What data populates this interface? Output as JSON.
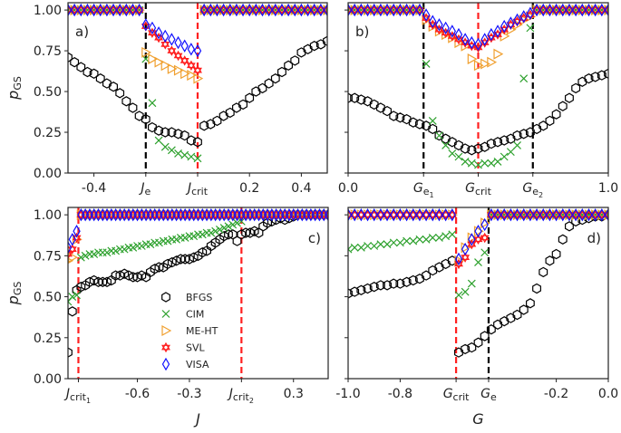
{
  "chart_data": [
    {
      "panel": "a)",
      "type": "scatter",
      "ylabel": "p_GS",
      "xlabel": "",
      "xlim": [
        -0.5,
        0.5
      ],
      "ylim": [
        0,
        1.045
      ],
      "yticks": [
        0,
        0.25,
        0.5,
        0.75,
        1.0
      ],
      "ytick_labels": [
        "0.00",
        "0.25",
        "0.50",
        "0.75",
        "1.00"
      ],
      "xticks": [
        {
          "v": -0.4,
          "main": "-0.4"
        },
        {
          "v": -0.2,
          "main": "J",
          "sub": "e"
        },
        {
          "v": 0.0,
          "main": "J",
          "sub": "crit"
        },
        {
          "v": 0.2,
          "main": "0.2"
        },
        {
          "v": 0.4,
          "main": "0.4"
        }
      ],
      "vlines": [
        {
          "v": -0.2,
          "color": "#000000"
        },
        {
          "v": 0.0,
          "color": "#ff2020"
        }
      ],
      "x_start": -0.5,
      "x_step": 0.025,
      "series": {
        "BFGS": [
          0.71,
          0.68,
          0.65,
          0.62,
          0.61,
          0.58,
          0.55,
          0.53,
          0.49,
          0.44,
          0.4,
          0.35,
          0.33,
          0.28,
          0.26,
          0.25,
          0.25,
          0.24,
          0.23,
          0.2,
          0.19,
          0.29,
          0.3,
          0.32,
          0.35,
          0.37,
          0.4,
          0.42,
          0.46,
          0.5,
          0.52,
          0.55,
          0.58,
          0.62,
          0.66,
          0.69,
          0.74,
          0.76,
          0.78,
          0.79,
          0.81
        ],
        "CIM": [
          1,
          1,
          1,
          1,
          1,
          1,
          1,
          1,
          1,
          1,
          1,
          1,
          0.7,
          0.43,
          0.2,
          0.16,
          0.14,
          0.12,
          0.11,
          0.1,
          0.09,
          1,
          1,
          1,
          1,
          1,
          1,
          1,
          1,
          1,
          1,
          1,
          1,
          1,
          1,
          1,
          1,
          1,
          1,
          1,
          1
        ],
        "ME-HT": [
          1,
          1,
          1,
          1,
          1,
          1,
          1,
          1,
          1,
          1,
          1,
          1,
          0.74,
          0.7,
          0.68,
          0.66,
          0.64,
          0.63,
          0.61,
          0.6,
          0.58,
          1,
          1,
          1,
          1,
          1,
          1,
          1,
          1,
          1,
          1,
          1,
          1,
          1,
          1,
          1,
          1,
          1,
          1,
          1,
          1
        ],
        "SVL": [
          1,
          1,
          1,
          1,
          1,
          1,
          1,
          1,
          1,
          1,
          1,
          1,
          0.9,
          0.86,
          0.83,
          0.79,
          0.75,
          0.72,
          0.69,
          0.66,
          0.63,
          1,
          1,
          1,
          1,
          1,
          1,
          1,
          1,
          1,
          1,
          1,
          1,
          1,
          1,
          1,
          1,
          1,
          1,
          1,
          1
        ],
        "VISA": [
          1,
          1,
          1,
          1,
          1,
          1,
          1,
          1,
          1,
          1,
          1,
          1,
          0.91,
          0.89,
          0.86,
          0.84,
          0.82,
          0.8,
          0.78,
          0.76,
          0.75,
          1,
          1,
          1,
          1,
          1,
          1,
          1,
          1,
          1,
          1,
          1,
          1,
          1,
          1,
          1,
          1,
          1,
          1,
          1,
          1
        ]
      }
    },
    {
      "panel": "b)",
      "type": "scatter",
      "ylabel": "",
      "xlabel": "",
      "xlim": [
        0,
        1
      ],
      "ylim": [
        0,
        1.045
      ],
      "yticks": [
        0,
        0.25,
        0.5,
        0.75,
        1.0
      ],
      "ytick_labels": [],
      "xticks": [
        {
          "v": 0.0,
          "main": "0.0"
        },
        {
          "v": 0.29,
          "main": "G",
          "sub": "e",
          "subsub": "1"
        },
        {
          "v": 0.5,
          "main": "G",
          "sub": "crit"
        },
        {
          "v": 0.71,
          "main": "G",
          "sub": "e",
          "subsub": "2"
        },
        {
          "v": 1.0,
          "main": "1.0"
        }
      ],
      "vlines": [
        {
          "v": 0.29,
          "color": "#000000"
        },
        {
          "v": 0.5,
          "color": "#ff2020"
        },
        {
          "v": 0.71,
          "color": "#000000"
        }
      ],
      "x_start": 0,
      "x_step": 0.025,
      "series": {
        "BFGS": [
          0.46,
          0.46,
          0.45,
          0.44,
          0.42,
          0.4,
          0.38,
          0.35,
          0.34,
          0.33,
          0.31,
          0.3,
          0.29,
          0.27,
          0.23,
          0.21,
          0.19,
          0.17,
          0.15,
          0.14,
          0.15,
          0.16,
          0.18,
          0.19,
          0.2,
          0.21,
          0.23,
          0.24,
          0.25,
          0.27,
          0.29,
          0.32,
          0.36,
          0.41,
          0.46,
          0.52,
          0.56,
          0.58,
          0.59,
          0.6,
          0.61
        ],
        "CIM": [
          1,
          1,
          1,
          1,
          1,
          1,
          1,
          1,
          1,
          1,
          1,
          1,
          0.67,
          0.32,
          0.23,
          0.17,
          0.12,
          0.1,
          0.07,
          0.06,
          0.05,
          0.06,
          0.06,
          0.07,
          0.1,
          0.13,
          0.17,
          0.58,
          0.89,
          1,
          1,
          1,
          1,
          1,
          1,
          1,
          1,
          1,
          1,
          1,
          1
        ],
        "ME-HT": [
          1,
          1,
          1,
          1,
          1,
          1,
          1,
          1,
          1,
          1,
          1,
          1,
          0.94,
          0.9,
          0.87,
          0.85,
          0.83,
          0.8,
          0.78,
          0.7,
          0.66,
          0.67,
          0.68,
          0.73,
          0.84,
          0.88,
          0.91,
          0.94,
          0.96,
          1,
          1,
          1,
          1,
          1,
          1,
          1,
          1,
          1,
          1,
          1,
          1
        ],
        "SVL": [
          1,
          1,
          1,
          1,
          1,
          1,
          1,
          1,
          1,
          1,
          1,
          1,
          0.95,
          0.91,
          0.88,
          0.86,
          0.84,
          0.82,
          0.8,
          0.78,
          0.77,
          0.8,
          0.83,
          0.85,
          0.88,
          0.91,
          0.93,
          0.95,
          0.97,
          1,
          1,
          1,
          1,
          1,
          1,
          1,
          1,
          1,
          1,
          1,
          1
        ],
        "VISA": [
          1,
          1,
          1,
          1,
          1,
          1,
          1,
          1,
          1,
          1,
          1,
          1,
          0.97,
          0.93,
          0.91,
          0.89,
          0.87,
          0.85,
          0.82,
          0.8,
          0.79,
          0.82,
          0.85,
          0.87,
          0.9,
          0.92,
          0.94,
          0.96,
          0.98,
          1,
          1,
          1,
          1,
          1,
          1,
          1,
          1,
          1,
          1,
          1,
          1
        ]
      }
    },
    {
      "panel": "c)",
      "type": "scatter",
      "ylabel": "p_GS",
      "xlabel": "J",
      "xlim": [
        -1.0,
        0.5
      ],
      "ylim": [
        0,
        1.045
      ],
      "yticks": [
        0,
        0.25,
        0.5,
        0.75,
        1.0
      ],
      "ytick_labels": [
        "0.00",
        "0.25",
        "0.50",
        "0.75",
        "1.00"
      ],
      "xticks": [
        {
          "v": -0.94,
          "main": "J",
          "sub": "crit",
          "subsub": "1"
        },
        {
          "v": -0.6,
          "main": "-0.6"
        },
        {
          "v": -0.3,
          "main": "-0.3"
        },
        {
          "v": 0.0,
          "main": "J",
          "sub": "crit",
          "subsub": "2"
        },
        {
          "v": 0.3,
          "main": "0.3"
        }
      ],
      "vlines": [
        {
          "v": -0.94,
          "color": "#ff2020"
        },
        {
          "v": 0.0,
          "color": "#ff2020"
        }
      ],
      "x_start": -1.0,
      "x_step": 0.025,
      "legend": {
        "placement": "center",
        "entries": [
          "BFGS",
          "CIM",
          "ME-HT",
          "SVL",
          "VISA"
        ]
      },
      "series": {
        "BFGS": [
          0.16,
          0.41,
          0.54,
          0.56,
          0.57,
          0.59,
          0.6,
          0.59,
          0.59,
          0.59,
          0.6,
          0.63,
          0.63,
          0.64,
          0.63,
          0.62,
          0.62,
          0.63,
          0.62,
          0.65,
          0.67,
          0.68,
          0.68,
          0.7,
          0.71,
          0.72,
          0.73,
          0.73,
          0.73,
          0.74,
          0.75,
          0.77,
          0.78,
          0.81,
          0.83,
          0.85,
          0.87,
          0.88,
          0.88,
          0.84,
          0.88,
          0.89,
          0.89,
          0.9,
          0.89,
          0.93,
          0.95,
          0.96,
          0.97,
          0.98,
          0.97,
          0.98,
          0.99,
          1,
          1,
          1,
          1,
          1,
          1,
          1,
          1
        ],
        "CIM": [
          0.47,
          0.5,
          0.51,
          0.74,
          0.75,
          0.76,
          0.76,
          0.77,
          0.77,
          0.77,
          0.78,
          0.78,
          0.79,
          0.79,
          0.8,
          0.8,
          0.81,
          0.81,
          0.82,
          0.82,
          0.83,
          0.83,
          0.84,
          0.84,
          0.85,
          0.85,
          0.86,
          0.86,
          0.87,
          0.87,
          0.88,
          0.88,
          0.89,
          0.89,
          0.9,
          0.91,
          0.92,
          0.93,
          0.94,
          0.95,
          0.96,
          1,
          1,
          1,
          1,
          1,
          1,
          1,
          1,
          1,
          1,
          1,
          1,
          1,
          1,
          1,
          1,
          1,
          1,
          1,
          1
        ],
        "ME-HT": [
          0.72,
          0.74,
          0.85,
          1,
          1,
          1,
          1,
          1,
          1,
          1,
          1,
          1,
          1,
          1,
          1,
          1,
          1,
          1,
          1,
          1,
          1,
          1,
          1,
          1,
          1,
          1,
          1,
          1,
          1,
          1,
          1,
          1,
          1,
          1,
          1,
          1,
          1,
          1,
          1,
          1,
          1,
          1,
          1,
          1,
          1,
          1,
          1,
          1,
          1,
          1,
          1,
          1,
          1,
          1,
          1,
          1,
          1,
          1,
          1,
          1,
          1
        ],
        "SVL": [
          0.76,
          0.79,
          0.86,
          1,
          1,
          1,
          1,
          1,
          1,
          1,
          1,
          1,
          1,
          1,
          1,
          1,
          1,
          1,
          1,
          1,
          1,
          1,
          1,
          1,
          1,
          1,
          1,
          1,
          1,
          1,
          1,
          1,
          1,
          1,
          1,
          1,
          1,
          1,
          1,
          1,
          1,
          1,
          1,
          1,
          1,
          1,
          1,
          1,
          1,
          1,
          1,
          1,
          1,
          1,
          1,
          1,
          1,
          1,
          1,
          1,
          1
        ],
        "VISA": [
          0.8,
          0.85,
          0.9,
          1,
          1,
          1,
          1,
          1,
          1,
          1,
          1,
          1,
          1,
          1,
          1,
          1,
          1,
          1,
          1,
          1,
          1,
          1,
          1,
          1,
          1,
          1,
          1,
          1,
          1,
          1,
          1,
          1,
          1,
          1,
          1,
          1,
          1,
          1,
          1,
          1,
          1,
          1,
          1,
          1,
          1,
          1,
          1,
          1,
          1,
          1,
          1,
          1,
          1,
          1,
          1,
          1,
          1,
          1,
          1,
          1,
          1
        ]
      }
    },
    {
      "panel": "d)",
      "type": "scatter",
      "ylabel": "",
      "xlabel": "G",
      "xlim": [
        -1.0,
        0.0
      ],
      "ylim": [
        0,
        1.045
      ],
      "yticks": [
        0,
        0.25,
        0.5,
        0.75,
        1.0
      ],
      "ytick_labels": [],
      "xticks": [
        {
          "v": -1.0,
          "main": "-1.0"
        },
        {
          "v": -0.8,
          "main": "-0.8"
        },
        {
          "v": -0.585,
          "main": "G",
          "sub": "crit"
        },
        {
          "v": -0.46,
          "main": "G",
          "sub": "e"
        },
        {
          "v": -0.2,
          "main": "-0.2"
        },
        {
          "v": 0.0,
          "main": "0.0"
        }
      ],
      "vlines": [
        {
          "v": -0.585,
          "color": "#ff2020"
        },
        {
          "v": -0.46,
          "color": "#000000"
        }
      ],
      "x_start": -1.0,
      "x_step": 0.025,
      "series": {
        "BFGS": [
          0.52,
          0.53,
          0.54,
          0.55,
          0.56,
          0.57,
          0.57,
          0.58,
          0.58,
          0.59,
          0.6,
          0.61,
          0.63,
          0.66,
          0.68,
          0.7,
          0.72,
          0.16,
          0.18,
          0.19,
          0.22,
          0.26,
          0.3,
          0.33,
          0.35,
          0.37,
          0.39,
          0.42,
          0.46,
          0.55,
          0.65,
          0.72,
          0.76,
          0.85,
          0.93,
          0.96,
          0.97,
          0.98,
          0.99,
          0.99,
          1.0
        ],
        "CIM": [
          0.79,
          0.8,
          0.8,
          0.81,
          0.81,
          0.82,
          0.82,
          0.83,
          0.83,
          0.84,
          0.84,
          0.85,
          0.85,
          0.86,
          0.86,
          0.87,
          0.88,
          0.51,
          0.53,
          0.58,
          0.71,
          0.77,
          1,
          1,
          1,
          1,
          1,
          1,
          1,
          1,
          1,
          1,
          1,
          1,
          1,
          1,
          1,
          1,
          1,
          1,
          1
        ],
        "ME-HT": [
          1,
          1,
          1,
          1,
          1,
          1,
          1,
          1,
          1,
          1,
          1,
          1,
          1,
          1,
          1,
          1,
          1,
          0.72,
          0.8,
          0.86,
          0.9,
          0.95,
          1,
          1,
          1,
          1,
          1,
          1,
          1,
          1,
          1,
          1,
          1,
          1,
          1,
          1,
          1,
          1,
          1,
          1,
          1
        ],
        "SVL": [
          1,
          1,
          1,
          1,
          1,
          1,
          1,
          1,
          1,
          1,
          1,
          1,
          1,
          1,
          1,
          1,
          1,
          0.7,
          0.74,
          0.82,
          0.85,
          0.86,
          1,
          1,
          1,
          1,
          1,
          1,
          1,
          1,
          1,
          1,
          1,
          1,
          1,
          1,
          1,
          1,
          1,
          1,
          1
        ],
        "VISA": [
          1,
          1,
          1,
          1,
          1,
          1,
          1,
          1,
          1,
          1,
          1,
          1,
          1,
          1,
          1,
          1,
          1,
          0.73,
          0.79,
          0.85,
          0.9,
          0.94,
          1,
          1,
          1,
          1,
          1,
          1,
          1,
          1,
          1,
          1,
          1,
          1,
          1,
          1,
          1,
          1,
          1,
          1,
          1
        ]
      }
    }
  ],
  "series_styles": {
    "BFGS": {
      "marker": "hexagon",
      "color": "#000000"
    },
    "CIM": {
      "marker": "x",
      "color": "#2ca02c"
    },
    "ME-HT": {
      "marker": "triangle-right",
      "color": "#f0a030"
    },
    "SVL": {
      "marker": "hexagram",
      "color": "#ff1a1a"
    },
    "VISA": {
      "marker": "diamond",
      "color": "#1010ff"
    }
  }
}
